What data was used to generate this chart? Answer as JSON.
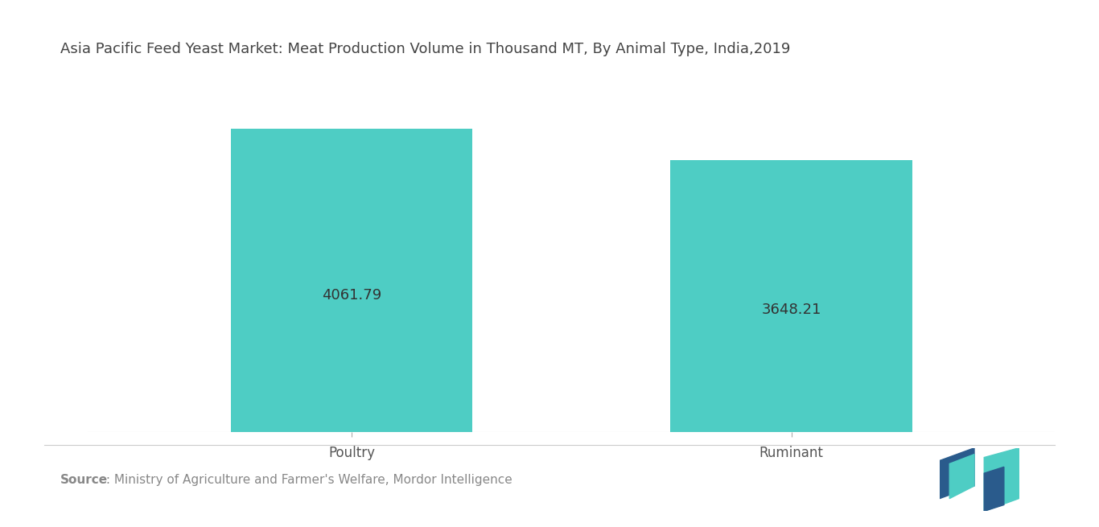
{
  "title": "Asia Pacific Feed Yeast Market: Meat Production Volume in Thousand MT, By Animal Type, India,2019",
  "categories": [
    "Poultry",
    "Ruminant"
  ],
  "values": [
    4061.79,
    3648.21
  ],
  "bar_color": "#4ECDC4",
  "value_labels": [
    "4061.79",
    "3648.21"
  ],
  "value_label_color": "#333333",
  "value_label_fontsize": 13,
  "xlabel_fontsize": 12,
  "title_fontsize": 13,
  "title_color": "#444444",
  "background_color": "#FFFFFF",
  "ylim": [
    0,
    4800
  ],
  "source_bold": "Source",
  "source_rest": " : Ministry of Agriculture and Farmer's Welfare, Mordor Intelligence",
  "source_fontsize": 11,
  "source_color": "#888888",
  "separator_color": "#cccccc",
  "logo_teal": "#4ECDC4",
  "logo_dark": "#2a5b8c"
}
